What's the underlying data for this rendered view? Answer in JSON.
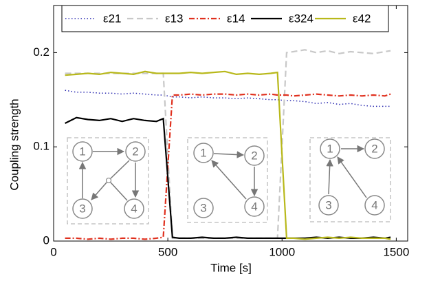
{
  "chart_data": {
    "type": "line",
    "xlabel": "Time [s]",
    "ylabel": "Coupling strength",
    "x": [
      50,
      100,
      150,
      200,
      250,
      300,
      350,
      400,
      450,
      480,
      520,
      550,
      600,
      650,
      700,
      750,
      800,
      850,
      900,
      950,
      980,
      1020,
      1050,
      1100,
      1150,
      1200,
      1250,
      1300,
      1350,
      1400,
      1450,
      1475
    ],
    "series": [
      {
        "name": "ε21",
        "color": "#2a2ab0",
        "style": "dotted",
        "values": [
          0.16,
          0.158,
          0.158,
          0.157,
          0.157,
          0.156,
          0.157,
          0.156,
          0.155,
          0.155,
          0.153,
          0.153,
          0.152,
          0.153,
          0.152,
          0.152,
          0.151,
          0.152,
          0.151,
          0.15,
          0.15,
          0.149,
          0.149,
          0.148,
          0.146,
          0.147,
          0.145,
          0.146,
          0.144,
          0.143,
          0.143,
          0.143
        ]
      },
      {
        "name": "ε13",
        "color": "#c8c8c8",
        "style": "dashed",
        "values": [
          0.178,
          0.178,
          0.178,
          0.178,
          0.178,
          0.178,
          0.178,
          0.178,
          0.178,
          0.178,
          0.003,
          0.003,
          0.003,
          0.003,
          0.003,
          0.003,
          0.003,
          0.003,
          0.003,
          0.003,
          0.003,
          0.2,
          0.201,
          0.203,
          0.2,
          0.202,
          0.199,
          0.201,
          0.2,
          0.199,
          0.201,
          0.202
        ]
      },
      {
        "name": "ε14",
        "color": "#e0301e",
        "style": "dashdot",
        "values": [
          0.003,
          0.003,
          0.002,
          0.003,
          0.002,
          0.003,
          0.003,
          0.002,
          0.003,
          0.004,
          0.155,
          0.155,
          0.156,
          0.155,
          0.156,
          0.156,
          0.155,
          0.156,
          0.155,
          0.156,
          0.155,
          0.155,
          0.154,
          0.155,
          0.156,
          0.155,
          0.154,
          0.155,
          0.154,
          0.155,
          0.154,
          0.156
        ]
      },
      {
        "name": "ε324",
        "color": "#000000",
        "style": "solid",
        "values": [
          0.125,
          0.131,
          0.129,
          0.128,
          0.13,
          0.127,
          0.13,
          0.128,
          0.127,
          0.13,
          0.004,
          0.003,
          0.003,
          0.004,
          0.003,
          0.003,
          0.004,
          0.003,
          0.003,
          0.003,
          0.003,
          0.003,
          0.003,
          0.003,
          0.004,
          0.003,
          0.004,
          0.003,
          0.003,
          0.004,
          0.003,
          0.004
        ]
      },
      {
        "name": "ε42",
        "color": "#b8b81a",
        "style": "solid",
        "values": [
          0.176,
          0.177,
          0.178,
          0.177,
          0.179,
          0.178,
          0.177,
          0.18,
          0.178,
          0.178,
          0.178,
          0.178,
          0.179,
          0.178,
          0.179,
          0.18,
          0.177,
          0.178,
          0.177,
          0.178,
          0.179,
          0.003,
          0.003,
          0.002,
          0.003,
          0.004,
          0.003,
          0.004,
          0.003,
          0.003,
          0.003,
          0.002
        ]
      }
    ],
    "xlim": [
      0,
      1550
    ],
    "ylim": [
      0,
      0.25
    ],
    "xticks": [
      0,
      500,
      1000,
      1500
    ],
    "yticks": [
      0,
      0.1,
      0.2
    ],
    "inset_nodes": [
      "1",
      "2",
      "3",
      "4"
    ]
  }
}
